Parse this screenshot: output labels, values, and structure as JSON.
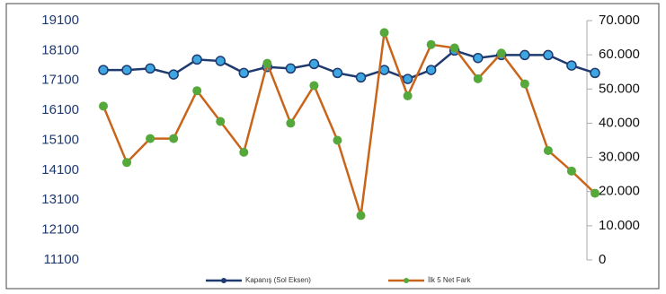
{
  "chart_data": {
    "type": "line",
    "categories": [
      null,
      null,
      null,
      null,
      null,
      null,
      null,
      null,
      null,
      null,
      null,
      null,
      null,
      null,
      null,
      null,
      null,
      null,
      null,
      null,
      null,
      null
    ],
    "series": [
      {
        "name": "Kapanış (Sol Eksen)",
        "color": "#1f3a6e",
        "marker_color": "#3ea6e0",
        "values": [
          17450,
          17450,
          17500,
          17300,
          17800,
          17750,
          17350,
          17550,
          17500,
          17650,
          17350,
          17200,
          17450,
          17150,
          17450,
          18100,
          17850,
          17950,
          17950,
          17950,
          17600,
          17350
        ]
      },
      {
        "name": "İlk 5 Net Fark",
        "color": "#c9651b",
        "marker_color": "#55a83a",
        "axis": "y2",
        "values": [
          45000,
          28500,
          35500,
          35500,
          49500,
          40500,
          31500,
          57500,
          40000,
          51000,
          35000,
          13000,
          66500,
          48000,
          63000,
          62000,
          53000,
          60500,
          51500,
          32000,
          26000,
          19500
        ]
      }
    ],
    "ylim": [
      11100,
      19100
    ],
    "yticks": [
      11100,
      12100,
      13100,
      14100,
      15100,
      16100,
      17100,
      18100,
      19100
    ],
    "y2lim": [
      0,
      70000
    ],
    "y2ticks": [
      0,
      {
        "value": 10000,
        "label": "10.000"
      },
      {
        "value": 20000,
        "label": "20.000"
      },
      {
        "value": 30000,
        "label": "30.000"
      },
      {
        "value": 40000,
        "label": "40.000"
      },
      {
        "value": 50000,
        "label": "50.000"
      },
      {
        "value": 60000,
        "label": "60.000"
      },
      {
        "value": 70000,
        "label": "70.000"
      }
    ],
    "legend": "bottom"
  }
}
